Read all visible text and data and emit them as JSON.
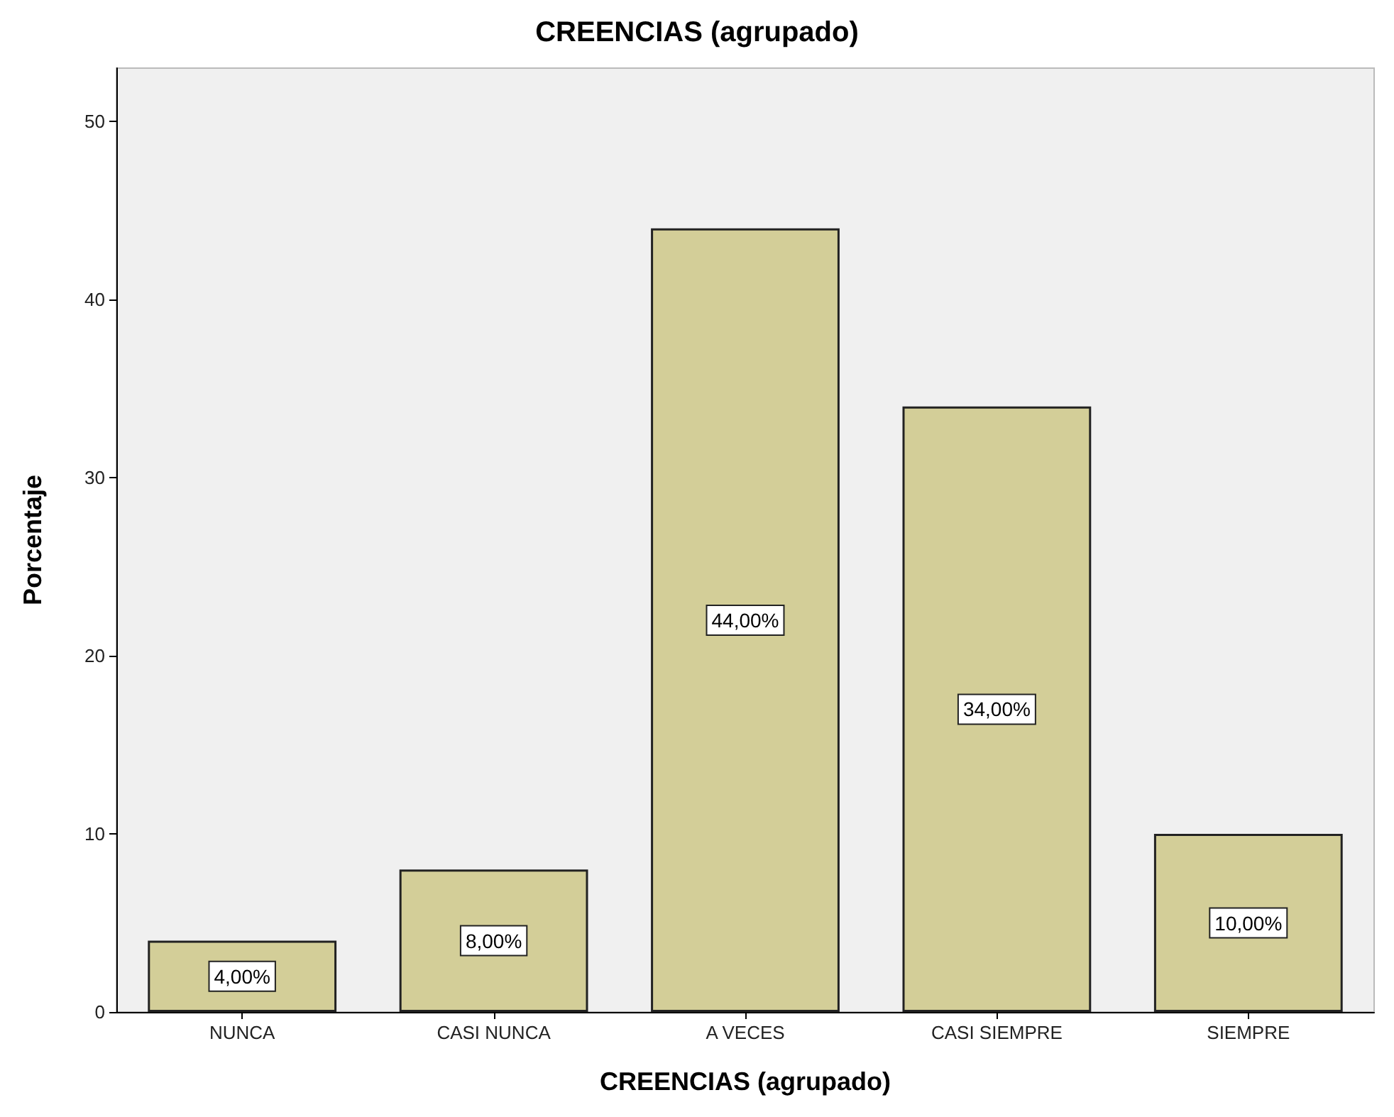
{
  "chart_data": {
    "type": "bar",
    "title": "CREENCIAS (agrupado)",
    "xlabel": "CREENCIAS (agrupado)",
    "ylabel": "Porcentaje",
    "categories": [
      "NUNCA",
      "CASI NUNCA",
      "A VECES",
      "CASI SIEMPRE",
      "SIEMPRE"
    ],
    "values": [
      4,
      8,
      44,
      34,
      10
    ],
    "value_labels": [
      "4,00%",
      "8,00%",
      "44,00%",
      "34,00%",
      "10,00%"
    ],
    "color": "#d3ce98",
    "ylim": [
      0,
      53
    ],
    "yticks": [
      0,
      10,
      20,
      30,
      40,
      50
    ]
  }
}
